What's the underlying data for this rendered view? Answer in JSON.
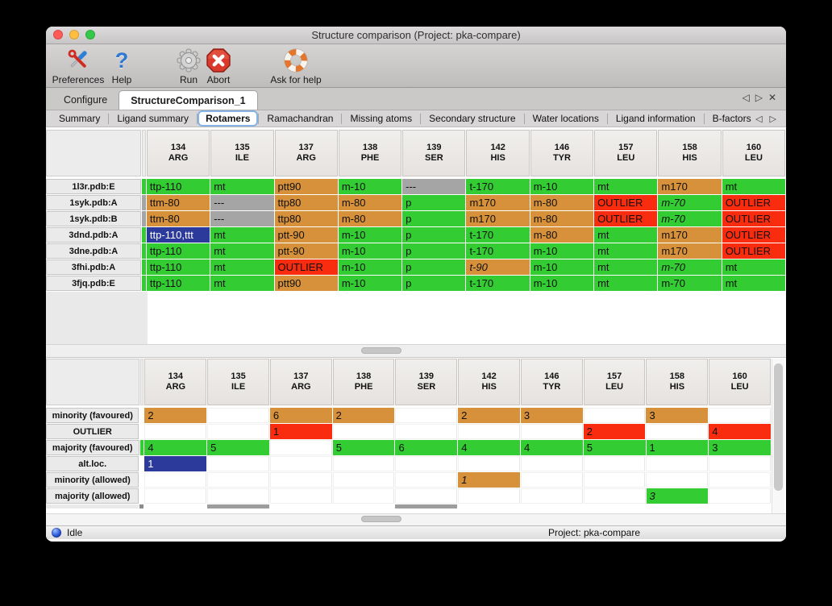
{
  "colors": {
    "green": "#33cd33",
    "orange": "#d7913b",
    "red": "#fa2c0f",
    "gray": "#a5a5a5",
    "blue": "#2c3a9c",
    "sliver_dark": "#8c8c8c",
    "partial_gray": "#9d9d9d"
  },
  "window": {
    "title": "Structure comparison (Project: pka-compare)"
  },
  "toolbar": {
    "items": [
      {
        "label": "Preferences",
        "icon": "tools-icon"
      },
      {
        "label": "Help",
        "icon": "help-icon"
      },
      {
        "label": "Run",
        "icon": "gear-icon"
      },
      {
        "label": "Abort",
        "icon": "abort-icon"
      },
      {
        "label": "Ask for help",
        "icon": "lifebuoy-icon"
      }
    ]
  },
  "tabs": {
    "items": [
      {
        "label": "Configure",
        "selected": false
      },
      {
        "label": "StructureComparison_1",
        "selected": true
      }
    ],
    "nav": {
      "left": "◁",
      "right": "▷",
      "close": "✕"
    }
  },
  "subtabs": {
    "items": [
      "Summary",
      "Ligand summary",
      "Rotamers",
      "Ramachandran",
      "Missing atoms",
      "Secondary structure",
      "Water locations",
      "Ligand information",
      "B-factors"
    ],
    "selected": "Rotamers",
    "nav": {
      "left": "◁",
      "right": "▷"
    }
  },
  "columns": [
    {
      "num": "134",
      "res": "ARG"
    },
    {
      "num": "135",
      "res": "ILE"
    },
    {
      "num": "137",
      "res": "ARG"
    },
    {
      "num": "138",
      "res": "PHE"
    },
    {
      "num": "139",
      "res": "SER"
    },
    {
      "num": "142",
      "res": "HIS"
    },
    {
      "num": "146",
      "res": "TYR"
    },
    {
      "num": "157",
      "res": "LEU"
    },
    {
      "num": "158",
      "res": "HIS"
    },
    {
      "num": "160",
      "res": "LEU"
    }
  ],
  "table1": {
    "rows": [
      {
        "label": "1l3r.pdb:E",
        "sliver": "green",
        "cells": [
          [
            "ttp-110",
            "green",
            0
          ],
          [
            "mt",
            "green",
            0
          ],
          [
            "ptt90",
            "orange",
            0
          ],
          [
            "m-10",
            "green",
            0
          ],
          [
            "---",
            "gray",
            0
          ],
          [
            "t-170",
            "green",
            0
          ],
          [
            "m-10",
            "green",
            0
          ],
          [
            "mt",
            "green",
            0
          ],
          [
            "m170",
            "orange",
            0
          ],
          [
            "mt",
            "green",
            0
          ]
        ]
      },
      {
        "label": "1syk.pdb:A",
        "sliver": "gray",
        "cells": [
          [
            "ttm-80",
            "orange",
            0
          ],
          [
            "---",
            "gray",
            0
          ],
          [
            "ttp80",
            "orange",
            0
          ],
          [
            "m-80",
            "orange",
            0
          ],
          [
            "p",
            "green",
            0
          ],
          [
            "m170",
            "orange",
            0
          ],
          [
            "m-80",
            "orange",
            0
          ],
          [
            "OUTLIER",
            "red",
            0
          ],
          [
            "m-70",
            "green",
            1
          ],
          [
            "OUTLIER",
            "red",
            0
          ]
        ]
      },
      {
        "label": "1syk.pdb:B",
        "sliver": "gray",
        "cells": [
          [
            "ttm-80",
            "orange",
            0
          ],
          [
            "---",
            "gray",
            0
          ],
          [
            "ttp80",
            "orange",
            0
          ],
          [
            "m-80",
            "orange",
            0
          ],
          [
            "p",
            "green",
            0
          ],
          [
            "m170",
            "orange",
            0
          ],
          [
            "m-80",
            "orange",
            0
          ],
          [
            "OUTLIER",
            "red",
            0
          ],
          [
            "m-70",
            "green",
            1
          ],
          [
            "OUTLIER",
            "red",
            0
          ]
        ]
      },
      {
        "label": "3dnd.pdb:A",
        "sliver": "green",
        "cells": [
          [
            "ttp-110,ttt",
            "blue",
            0
          ],
          [
            "mt",
            "green",
            0
          ],
          [
            "ptt-90",
            "orange",
            0
          ],
          [
            "m-10",
            "green",
            0
          ],
          [
            "p",
            "green",
            0
          ],
          [
            "t-170",
            "green",
            0
          ],
          [
            "m-80",
            "orange",
            0
          ],
          [
            "mt",
            "green",
            0
          ],
          [
            "m170",
            "orange",
            0
          ],
          [
            "OUTLIER",
            "red",
            0
          ]
        ]
      },
      {
        "label": "3dne.pdb:A",
        "sliver": "green",
        "cells": [
          [
            "ttp-110",
            "green",
            0
          ],
          [
            "mt",
            "green",
            0
          ],
          [
            "ptt-90",
            "orange",
            0
          ],
          [
            "m-10",
            "green",
            0
          ],
          [
            "p",
            "green",
            0
          ],
          [
            "t-170",
            "green",
            0
          ],
          [
            "m-10",
            "green",
            0
          ],
          [
            "mt",
            "green",
            0
          ],
          [
            "m170",
            "orange",
            0
          ],
          [
            "OUTLIER",
            "red",
            0
          ]
        ]
      },
      {
        "label": "3fhi.pdb:A",
        "sliver": "green",
        "cells": [
          [
            "ttp-110",
            "green",
            0
          ],
          [
            "mt",
            "green",
            0
          ],
          [
            "OUTLIER",
            "red",
            0
          ],
          [
            "m-10",
            "green",
            0
          ],
          [
            "p",
            "green",
            0
          ],
          [
            "t-90",
            "orange",
            1
          ],
          [
            "m-10",
            "green",
            0
          ],
          [
            "mt",
            "green",
            0
          ],
          [
            "m-70",
            "green",
            1
          ],
          [
            "mt",
            "green",
            0
          ]
        ]
      },
      {
        "label": "3fjq.pdb:E",
        "sliver": "green",
        "cells": [
          [
            "ttp-110",
            "green",
            0
          ],
          [
            "mt",
            "green",
            0
          ],
          [
            "ptt90",
            "orange",
            0
          ],
          [
            "m-10",
            "green",
            0
          ],
          [
            "p",
            "green",
            0
          ],
          [
            "t-170",
            "green",
            0
          ],
          [
            "m-10",
            "green",
            0
          ],
          [
            "mt",
            "green",
            0
          ],
          [
            "m-70",
            "green",
            0
          ],
          [
            "mt",
            "green",
            0
          ]
        ]
      }
    ]
  },
  "table2": {
    "rows": [
      {
        "label": "minority (favoured)",
        "sliver": "none",
        "cells": [
          [
            "2",
            "orange",
            0
          ],
          [
            "",
            "none",
            0
          ],
          [
            "6",
            "orange",
            0
          ],
          [
            "2",
            "orange",
            0
          ],
          [
            "",
            "none",
            0
          ],
          [
            "2",
            "orange",
            0
          ],
          [
            "3",
            "orange",
            0
          ],
          [
            "",
            "none",
            0
          ],
          [
            "3",
            "orange",
            0
          ],
          [
            "",
            "none",
            0
          ]
        ]
      },
      {
        "label": "OUTLIER",
        "sliver": "none",
        "cells": [
          [
            "",
            "none",
            0
          ],
          [
            "",
            "none",
            0
          ],
          [
            "1",
            "red",
            0
          ],
          [
            "",
            "none",
            0
          ],
          [
            "",
            "none",
            0
          ],
          [
            "",
            "none",
            0
          ],
          [
            "",
            "none",
            0
          ],
          [
            "2",
            "red",
            0
          ],
          [
            "",
            "none",
            0
          ],
          [
            "4",
            "red",
            0
          ]
        ]
      },
      {
        "label": "majority (favoured)",
        "sliver": "green",
        "cells": [
          [
            "4",
            "green",
            0
          ],
          [
            "5",
            "green",
            0
          ],
          [
            "",
            "none",
            0
          ],
          [
            "5",
            "green",
            0
          ],
          [
            "6",
            "green",
            0
          ],
          [
            "4",
            "green",
            0
          ],
          [
            "4",
            "green",
            0
          ],
          [
            "5",
            "green",
            0
          ],
          [
            "1",
            "green",
            0
          ],
          [
            "3",
            "green",
            0
          ]
        ]
      },
      {
        "label": "alt.loc.",
        "sliver": "none",
        "cells": [
          [
            "1",
            "blue",
            0
          ],
          [
            "",
            "none",
            0
          ],
          [
            "",
            "none",
            0
          ],
          [
            "",
            "none",
            0
          ],
          [
            "",
            "none",
            0
          ],
          [
            "",
            "none",
            0
          ],
          [
            "",
            "none",
            0
          ],
          [
            "",
            "none",
            0
          ],
          [
            "",
            "none",
            0
          ],
          [
            "",
            "none",
            0
          ]
        ]
      },
      {
        "label": "minority (allowed)",
        "sliver": "none",
        "cells": [
          [
            "",
            "none",
            0
          ],
          [
            "",
            "none",
            0
          ],
          [
            "",
            "none",
            0
          ],
          [
            "",
            "none",
            0
          ],
          [
            "",
            "none",
            0
          ],
          [
            "1",
            "orange",
            1
          ],
          [
            "",
            "none",
            0
          ],
          [
            "",
            "none",
            0
          ],
          [
            "",
            "none",
            0
          ],
          [
            "",
            "none",
            0
          ]
        ]
      },
      {
        "label": "majority (allowed)",
        "sliver": "none",
        "cells": [
          [
            "",
            "none",
            0
          ],
          [
            "",
            "none",
            0
          ],
          [
            "",
            "none",
            0
          ],
          [
            "",
            "none",
            0
          ],
          [
            "",
            "none",
            0
          ],
          [
            "",
            "none",
            0
          ],
          [
            "",
            "none",
            0
          ],
          [
            "",
            "none",
            0
          ],
          [
            "3",
            "green",
            1
          ],
          [
            "",
            "none",
            0
          ]
        ]
      }
    ],
    "partial_row": {
      "sliver": "dark",
      "gray_columns": [
        1,
        4
      ]
    }
  },
  "statusbar": {
    "status": "Idle",
    "project": "Project: pka-compare"
  }
}
